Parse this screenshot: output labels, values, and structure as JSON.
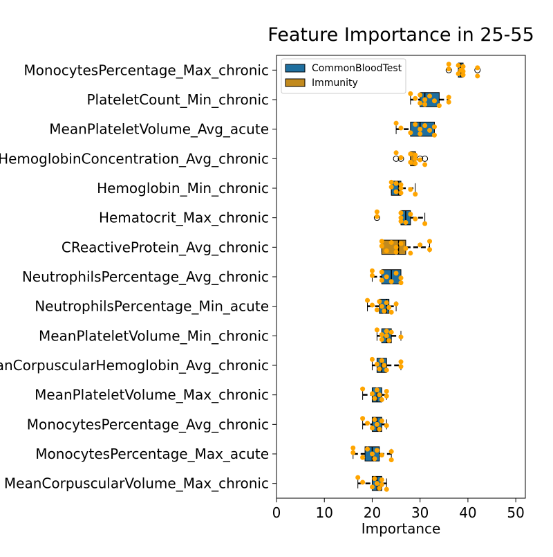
{
  "chart_data": {
    "type": "boxplot",
    "orientation": "horizontal",
    "title": "Feature Importance in 25-55",
    "xlabel": "Importance",
    "ylabel": "",
    "xlim": [
      0,
      52
    ],
    "xticks": [
      0,
      10,
      20,
      30,
      40,
      50
    ],
    "grid": false,
    "legend": {
      "position": "top-left",
      "entries": [
        {
          "name": "CommonBloodTest",
          "color": "#1f6f9f"
        },
        {
          "name": "Immunity",
          "color": "#c28a1e"
        }
      ]
    },
    "point_color": "#ffa500",
    "features": [
      {
        "label": "MonocytesPercentage_Max_chronic",
        "group": "CommonBloodTest",
        "whisker_low": 38,
        "q1": 38,
        "median": 38.5,
        "q3": 39,
        "whisker_high": 39,
        "outliers": [
          36,
          42
        ],
        "points": [
          36,
          36,
          38,
          38,
          38.5,
          39,
          39,
          39,
          42,
          42
        ]
      },
      {
        "label": "PlateletCount_Min_chronic",
        "group": "CommonBloodTest",
        "whisker_low": 28,
        "q1": 30,
        "median": 31,
        "q3": 34,
        "whisker_high": 36,
        "outliers": [],
        "points": [
          28,
          29,
          30,
          30,
          31,
          31,
          32,
          33,
          34,
          36,
          36
        ]
      },
      {
        "label": "MeanPlateletVolume_Avg_acute",
        "group": "CommonBloodTest",
        "whisker_low": 25,
        "q1": 28,
        "median": 30,
        "q3": 33,
        "whisker_high": 33,
        "outliers": [],
        "points": [
          25,
          26,
          28,
          29,
          30,
          30,
          31,
          32,
          33,
          33
        ]
      },
      {
        "label": "HemoglobinConcentration_Avg_chronic",
        "group": "Immunity",
        "whisker_low": 28,
        "q1": 28,
        "median": 29,
        "q3": 29,
        "whisker_high": 29,
        "outliers": [
          25,
          26,
          30,
          31
        ],
        "points": [
          25,
          26,
          28,
          28,
          29,
          29,
          29,
          30,
          31
        ]
      },
      {
        "label": "Hemoglobin_Min_chronic",
        "group": "CommonBloodTest",
        "whisker_low": 24,
        "q1": 24,
        "median": 25.5,
        "q3": 26,
        "whisker_high": 29,
        "outliers": [],
        "points": [
          24,
          24,
          25,
          25,
          26,
          26,
          26,
          28,
          29
        ]
      },
      {
        "label": "Hematocrit_Max_chronic",
        "group": "CommonBloodTest",
        "whisker_low": 26,
        "q1": 26,
        "median": 27,
        "q3": 28,
        "whisker_high": 31,
        "outliers": [
          21
        ],
        "points": [
          21,
          21,
          26,
          26,
          26,
          27,
          28,
          29,
          31
        ]
      },
      {
        "label": "CReactiveProtein_Avg_chronic",
        "group": "Immunity",
        "whisker_low": 22,
        "q1": 22,
        "median": 25.5,
        "q3": 27,
        "whisker_high": 32,
        "outliers": [],
        "points": [
          22,
          22,
          23,
          24,
          25,
          25,
          26,
          27,
          28,
          30,
          32,
          32
        ]
      },
      {
        "label": "NeutrophilsPercentage_Avg_chronic",
        "group": "CommonBloodTest",
        "whisker_low": 20,
        "q1": 22,
        "median": 24,
        "q3": 26,
        "whisker_high": 26,
        "outliers": [],
        "points": [
          20,
          20,
          22,
          22,
          23,
          24,
          25,
          26,
          26
        ]
      },
      {
        "label": "NeutrophilsPercentage_Min_acute",
        "group": "CommonBloodTest",
        "whisker_low": 19,
        "q1": 21.5,
        "median": 23,
        "q3": 23.5,
        "whisker_high": 25,
        "outliers": [],
        "points": [
          19,
          20,
          21,
          21.5,
          22,
          22.5,
          23,
          23.5,
          24,
          25
        ]
      },
      {
        "label": "MeanPlateletVolume_Min_chronic",
        "group": "CommonBloodTest",
        "whisker_low": 21,
        "q1": 22,
        "median": 23,
        "q3": 24,
        "whisker_high": 26,
        "outliers": [],
        "points": [
          21,
          22,
          22,
          23,
          23,
          23.5,
          24,
          26
        ]
      },
      {
        "label": "MeanCorpuscularHemoglobin_Avg_chronic",
        "group": "CommonBloodTest",
        "whisker_low": 20,
        "q1": 21,
        "median": 22,
        "q3": 23,
        "whisker_high": 26,
        "outliers": [],
        "points": [
          20,
          21,
          21.5,
          22,
          22.5,
          23,
          26,
          26
        ]
      },
      {
        "label": "MeanPlateletVolume_Max_chronic",
        "group": "CommonBloodTest",
        "whisker_low": 18,
        "q1": 20,
        "median": 21,
        "q3": 22,
        "whisker_high": 23,
        "outliers": [],
        "points": [
          18,
          20,
          20.5,
          21,
          21.5,
          22,
          23,
          23
        ]
      },
      {
        "label": "MonocytesPercentage_Avg_chronic",
        "group": "CommonBloodTest",
        "whisker_low": 18,
        "q1": 20,
        "median": 21,
        "q3": 22,
        "whisker_high": 23,
        "outliers": [],
        "points": [
          18,
          19,
          20,
          20.5,
          21,
          21.5,
          22,
          23
        ]
      },
      {
        "label": "MonocytesPercentage_Max_acute",
        "group": "CommonBloodTest",
        "whisker_low": 16,
        "q1": 18.5,
        "median": 20,
        "q3": 21.5,
        "whisker_high": 24,
        "outliers": [],
        "points": [
          16,
          16,
          18,
          19,
          20,
          20.5,
          21,
          22,
          24,
          24
        ]
      },
      {
        "label": "MeanCorpuscularVolume_Max_chronic",
        "group": "CommonBloodTest",
        "whisker_low": 17,
        "q1": 20,
        "median": 21,
        "q3": 22,
        "whisker_high": 23,
        "outliers": [],
        "points": [
          17,
          18,
          20,
          20.5,
          21,
          21.5,
          22,
          22,
          23
        ]
      }
    ]
  }
}
